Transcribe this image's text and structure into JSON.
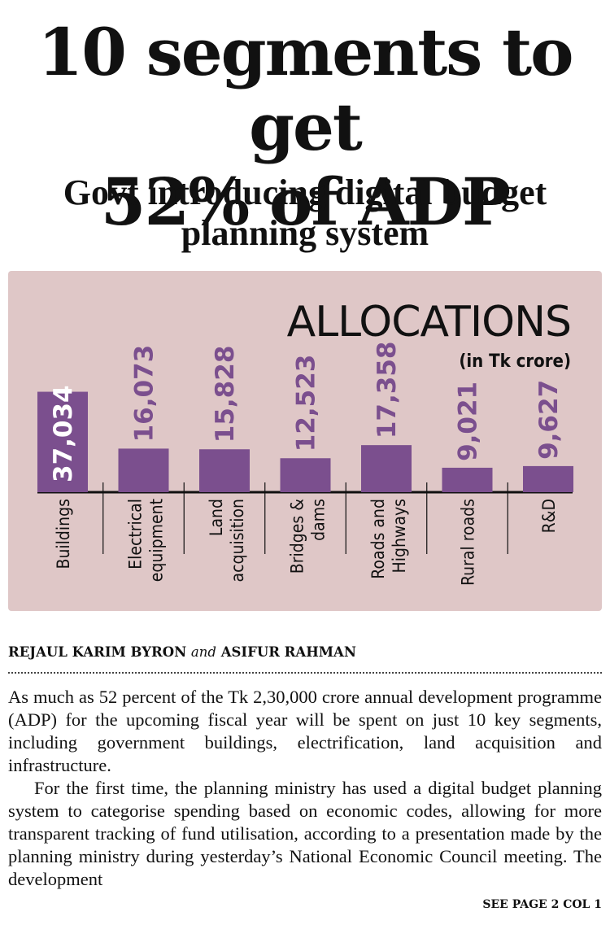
{
  "headline": {
    "line1": "10 segments to get",
    "line2": "52% of ADP"
  },
  "subheadline": {
    "line1": "Govt introducing digital budget",
    "line2": "planning system"
  },
  "chart_data": {
    "type": "bar",
    "title": "ALLOCATIONS",
    "subtitle": "(in Tk crore)",
    "categories": [
      "Buildings",
      "Electrical equipment",
      "Land acquisition",
      "Bridges & dams",
      "Roads and Highways",
      "Rural roads",
      "R&D"
    ],
    "category_lines": [
      [
        "Buildings"
      ],
      [
        "Electrical",
        "equipment"
      ],
      [
        "Land",
        "acquisition"
      ],
      [
        "Bridges &",
        "dams"
      ],
      [
        "Roads and",
        "Highways"
      ],
      [
        "Rural roads"
      ],
      [
        "R&D"
      ]
    ],
    "values": [
      37034,
      16073,
      15828,
      12523,
      17358,
      9021,
      9627
    ],
    "value_labels": [
      "37,034",
      "16,073",
      "15,828",
      "12,523",
      "17,358",
      "9,021",
      "9,627"
    ],
    "ylim": [
      0,
      42000
    ],
    "xlabel": "",
    "ylabel": "",
    "colors": {
      "bar": "#7b4f8e",
      "label": "#7b4f8e",
      "inside_label": "#ffffff",
      "axis": "#111111",
      "background": "#dfc7c7"
    }
  },
  "article": {
    "byline_author1": "REJAUL KARIM BYRON",
    "byline_and": "and",
    "byline_author2": "ASIFUR RAHMAN",
    "paragraph1": "As much as 52 percent of the Tk 2,30,000 crore annual development programme (ADP) for the upcoming fiscal year will be spent on just 10 key segments, including government buildings, electrification, land acquisition and infrastructure.",
    "paragraph2": "For the first time, the planning ministry has used a digital budget planning system to categorise spending based on economic codes, allowing for more transparent tracking of fund utilisation, according to a presentation made by the planning ministry during yesterday’s National Economic Council meeting. The development",
    "continuation": "SEE PAGE 2 COL 1"
  }
}
